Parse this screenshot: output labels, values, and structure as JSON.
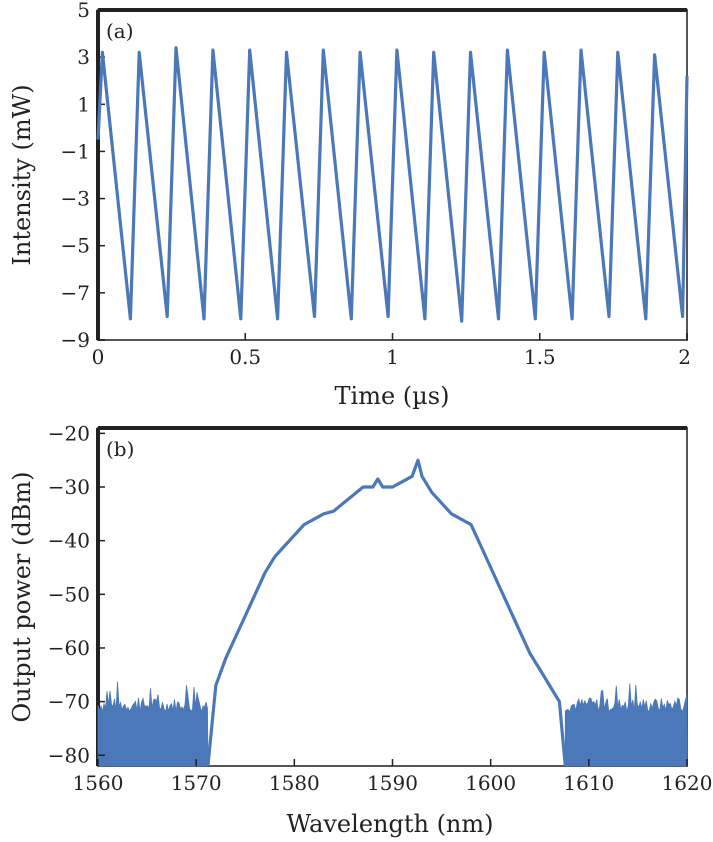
{
  "chart_data": [
    {
      "type": "line",
      "panel_label": "(a)",
      "xlabel": "Time (µs)",
      "ylabel": "Intensity (mW)",
      "xlim": [
        0,
        2
      ],
      "ylim": [
        -9,
        5
      ],
      "xticks": [
        "0",
        "0.5",
        "1",
        "1.5",
        "2"
      ],
      "yticks": [
        "5",
        "3",
        "1",
        "−1",
        "−3",
        "−5",
        "−7",
        "−9"
      ],
      "grid": false,
      "series": [
        {
          "color": "#4a78b8",
          "x": [
            0,
            0.015,
            0.11,
            0.14,
            0.235,
            0.265,
            0.36,
            0.39,
            0.485,
            0.515,
            0.61,
            0.64,
            0.735,
            0.765,
            0.86,
            0.89,
            0.985,
            1.015,
            1.11,
            1.14,
            1.235,
            1.265,
            1.36,
            1.39,
            1.485,
            1.515,
            1.61,
            1.64,
            1.735,
            1.765,
            1.86,
            1.89,
            1.985,
            2.0
          ],
          "y": [
            -0.5,
            3.2,
            -8.1,
            3.2,
            -8.0,
            3.4,
            -8.1,
            3.3,
            -8.1,
            3.3,
            -8.1,
            3.2,
            -8.0,
            3.3,
            -8.1,
            3.2,
            -8.0,
            3.3,
            -8.1,
            3.2,
            -8.2,
            3.2,
            -8.1,
            3.3,
            -8.1,
            3.2,
            -8.1,
            3.3,
            -8.0,
            3.2,
            -8.1,
            3.1,
            -8.0,
            2.2
          ]
        }
      ]
    },
    {
      "type": "line",
      "panel_label": "(b)",
      "xlabel": "Wavelength (nm)",
      "ylabel": "Output power (dBm)",
      "xlim": [
        1560,
        1620
      ],
      "ylim": [
        -82,
        -19
      ],
      "xticks": [
        "1560",
        "1570",
        "1580",
        "1590",
        "1600",
        "1610",
        "1620"
      ],
      "yticks": [
        "−20",
        "−30",
        "−40",
        "−50",
        "−60",
        "−70",
        "−80"
      ],
      "grid": false,
      "noise_floor": {
        "x_ranges": [
          [
            1560,
            1571.2
          ],
          [
            1607.6,
            1620
          ]
        ],
        "level": -82,
        "top_range": [
          -72,
          -66
        ]
      },
      "series": [
        {
          "color": "#4a78b8",
          "x": [
            1571.2,
            1572,
            1573,
            1574,
            1575,
            1576,
            1577,
            1578,
            1579,
            1580,
            1581,
            1582,
            1583,
            1584,
            1585,
            1586,
            1587,
            1588,
            1588.5,
            1589,
            1590,
            1591,
            1592,
            1592.6,
            1593,
            1594,
            1595,
            1596,
            1597,
            1598,
            1599,
            1600,
            1601,
            1602,
            1603,
            1604,
            1605,
            1606,
            1607,
            1607.6
          ],
          "y": [
            -82,
            -67,
            -62,
            -58,
            -54,
            -50,
            -46,
            -43,
            -41,
            -39,
            -37,
            -36,
            -35,
            -34.5,
            -33,
            -31.5,
            -30,
            -30,
            -28.5,
            -30,
            -30,
            -29,
            -28,
            -25,
            -28,
            -31,
            -33,
            -35,
            -36,
            -37,
            -41,
            -45,
            -49,
            -53,
            -57,
            -61,
            -64,
            -67,
            -70,
            -82
          ]
        }
      ]
    }
  ]
}
